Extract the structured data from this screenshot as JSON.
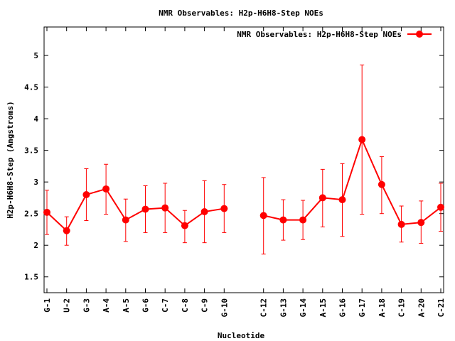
{
  "chart_data": {
    "type": "line",
    "title": "NMR Observables: H2p-H6H8-Step NOEs",
    "xlabel": "Nucleotide",
    "ylabel": "H2p-H6H8-Step (Angstroms)",
    "ylim": [
      1.25,
      5.45
    ],
    "yticks": [
      1.5,
      2,
      2.5,
      3,
      3.5,
      4,
      4.5,
      5
    ],
    "ytick_labels": [
      "1.5",
      "2",
      "2.5",
      "3",
      "3.5",
      "4",
      "4.5",
      "5"
    ],
    "legend_position": "top-right",
    "grid": false,
    "categories": [
      "G-1",
      "U-2",
      "G-3",
      "A-4",
      "A-5",
      "G-6",
      "C-7",
      "C-8",
      "C-9",
      "G-10",
      "",
      "C-12",
      "G-13",
      "G-14",
      "A-15",
      "G-16",
      "G-17",
      "A-18",
      "C-19",
      "A-20",
      "C-21"
    ],
    "series": [
      {
        "name": "NMR Observables: H2p-H6H8-Step NOEs",
        "color": "#ff0000",
        "values": [
          2.52,
          2.23,
          2.8,
          2.89,
          2.4,
          2.57,
          2.59,
          2.31,
          2.53,
          2.58,
          null,
          2.47,
          2.4,
          2.4,
          2.75,
          2.72,
          3.67,
          2.96,
          2.33,
          2.36,
          2.6
        ],
        "error_low": [
          2.17,
          2.0,
          2.39,
          2.49,
          2.06,
          2.2,
          2.2,
          2.04,
          2.04,
          2.2,
          null,
          1.86,
          2.08,
          2.09,
          2.29,
          2.14,
          2.49,
          2.5,
          2.05,
          2.03,
          2.22
        ],
        "error_high": [
          2.87,
          2.45,
          3.21,
          3.28,
          2.73,
          2.94,
          2.98,
          2.55,
          3.02,
          2.96,
          null,
          3.07,
          2.72,
          2.71,
          3.2,
          3.29,
          4.85,
          3.4,
          2.62,
          2.7,
          2.98
        ]
      }
    ]
  }
}
